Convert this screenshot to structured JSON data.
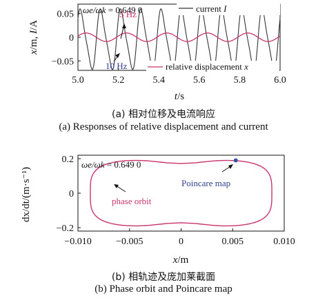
{
  "colors": {
    "current": "#333333",
    "displacement": "#c8336a",
    "blue_text": "#2f3f8f",
    "red_text": "#c8336a",
    "poincare_dot": "#3a4fa8",
    "axis": "#111111"
  },
  "panel_a": {
    "caption_zh": "(a) 相对位移及电流响应",
    "caption_en": "(a) Responses of relative displacement and current",
    "ratio_sym": "ωe/ωk",
    "ratio_val": " = 0.649 0",
    "legend_current_base": "current ",
    "legend_current_var": "I",
    "legend_disp_base": "relative displacement ",
    "legend_disp_var": "x",
    "ann_5hz": "5 Hz",
    "ann_10hz": "10 Hz",
    "ylabel_var1": "x",
    "ylabel_unit1": "/m, ",
    "ylabel_var2": "I",
    "ylabel_unit2": "/A",
    "xlabel_var": "t",
    "xlabel_unit": "/s",
    "x_ticks": [
      "5.0",
      "5.2",
      "5.4",
      "5.6",
      "5.8",
      "6.0"
    ],
    "y_ticks": [
      "0.05",
      "0",
      "−0.05"
    ]
  },
  "panel_b": {
    "caption_zh": "(b) 相轨迹及庞加莱截面",
    "caption_en": "(b) Phase orbit and Poincare map",
    "ratio_sym": "ωe/ωk",
    "ratio_val": " = 0.649 0",
    "ann_orbit": "phase orbit",
    "ann_poincare": "Poincare map",
    "ylabel": "dx/dt/(m·s⁻¹)",
    "xlabel_var": "x",
    "xlabel_unit": "/m",
    "x_ticks": [
      "−0.010",
      "−0.005",
      "0",
      "0.005",
      "0.010"
    ],
    "y_ticks": [
      "0.2",
      "0",
      "−0.2"
    ]
  },
  "chart_data": [
    {
      "type": "line",
      "panel": "a",
      "xlim": [
        5.0,
        6.0
      ],
      "ylim": [
        -0.07,
        0.07
      ],
      "series": [
        {
          "name": "current I",
          "frequency_hz": 10,
          "amplitude": 0.06,
          "offset": -0.005,
          "phase": 0.6,
          "color": "#333333"
        },
        {
          "name": "relative displacement x",
          "frequency_hz": 5,
          "amplitude": 0.009,
          "offset": 0,
          "phase": 0.3,
          "color": "#c8336a"
        }
      ]
    },
    {
      "type": "line",
      "panel": "b",
      "xlim": [
        -0.01,
        0.01
      ],
      "ylim": [
        -0.22,
        0.22
      ],
      "series": [
        {
          "name": "phase orbit",
          "x_amplitude": 0.0088,
          "y_amplitude": 0.195,
          "color": "#c8336a"
        }
      ],
      "poincare_point": {
        "x": 0.0053,
        "y": 0.19
      }
    }
  ]
}
